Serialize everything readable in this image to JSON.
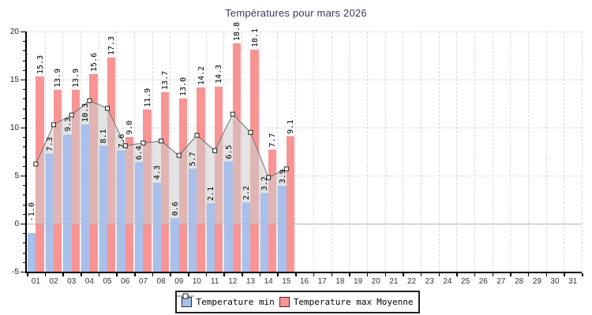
{
  "title": "Températures pour mars 2026",
  "legend": {
    "min_label": "Temperature min",
    "max_label": "Temperature max",
    "moyenne_label": "Moyenne"
  },
  "colors": {
    "min_bar": "#a9c0ec",
    "max_bar": "#f99494",
    "moyenne_line": "#707070",
    "marker_fill": "#ffffff",
    "marker_border": "#222222",
    "area_fill": "rgba(205,205,205,0.55)",
    "title_color": "#39395c",
    "grid": "#d9d9d9",
    "zero_line": "#b3b3b3",
    "min_swatch_border": "#2a2a3a",
    "max_swatch_border": "#4a2626"
  },
  "y_axis": {
    "min": -5,
    "max": 20,
    "major_ticks": [
      {
        "label": "20",
        "value": 20
      },
      {
        "label": "15",
        "value": 15
      },
      {
        "label": "10",
        "value": 10
      },
      {
        "label": "5",
        "value": 5
      },
      {
        "label": "0",
        "value": 0
      },
      {
        "label": "-5",
        "value": -5
      }
    ]
  },
  "x_axis": {
    "labels": [
      "01",
      "02",
      "03",
      "04",
      "05",
      "06",
      "07",
      "08",
      "09",
      "10",
      "11",
      "12",
      "13",
      "14",
      "15",
      "16",
      "17",
      "18",
      "19",
      "20",
      "21",
      "22",
      "23",
      "24",
      "25",
      "26",
      "27",
      "28",
      "29",
      "30",
      "31"
    ]
  },
  "chart_data": {
    "type": "bar",
    "title": "Températures pour mars 2026",
    "categories": [
      "01",
      "02",
      "03",
      "04",
      "05",
      "06",
      "07",
      "08",
      "09",
      "10",
      "11",
      "12",
      "13",
      "14",
      "15"
    ],
    "series": [
      {
        "name": "Temperature min",
        "type": "bar",
        "values": [
          -1.0,
          7.3,
          9.3,
          10.3,
          8.1,
          7.6,
          6.4,
          4.3,
          0.6,
          5.7,
          2.1,
          6.5,
          2.2,
          3.2,
          3.9
        ]
      },
      {
        "name": "Temperature max",
        "type": "bar",
        "values": [
          15.3,
          13.9,
          13.9,
          15.6,
          17.3,
          9.0,
          11.9,
          13.7,
          13.0,
          14.2,
          14.3,
          18.8,
          18.1,
          7.7,
          9.1
        ]
      },
      {
        "name": "Moyenne",
        "type": "line",
        "values": [
          6.2,
          10.3,
          11.3,
          12.8,
          12.0,
          8.1,
          8.4,
          8.6,
          7.1,
          9.2,
          7.6,
          11.4,
          9.5,
          4.8,
          5.7
        ]
      }
    ],
    "ylim": [
      -5,
      20
    ],
    "x_days_shown": 31,
    "grid": true,
    "legend_position": "bottom",
    "data_labels": "rotated-vertical"
  }
}
